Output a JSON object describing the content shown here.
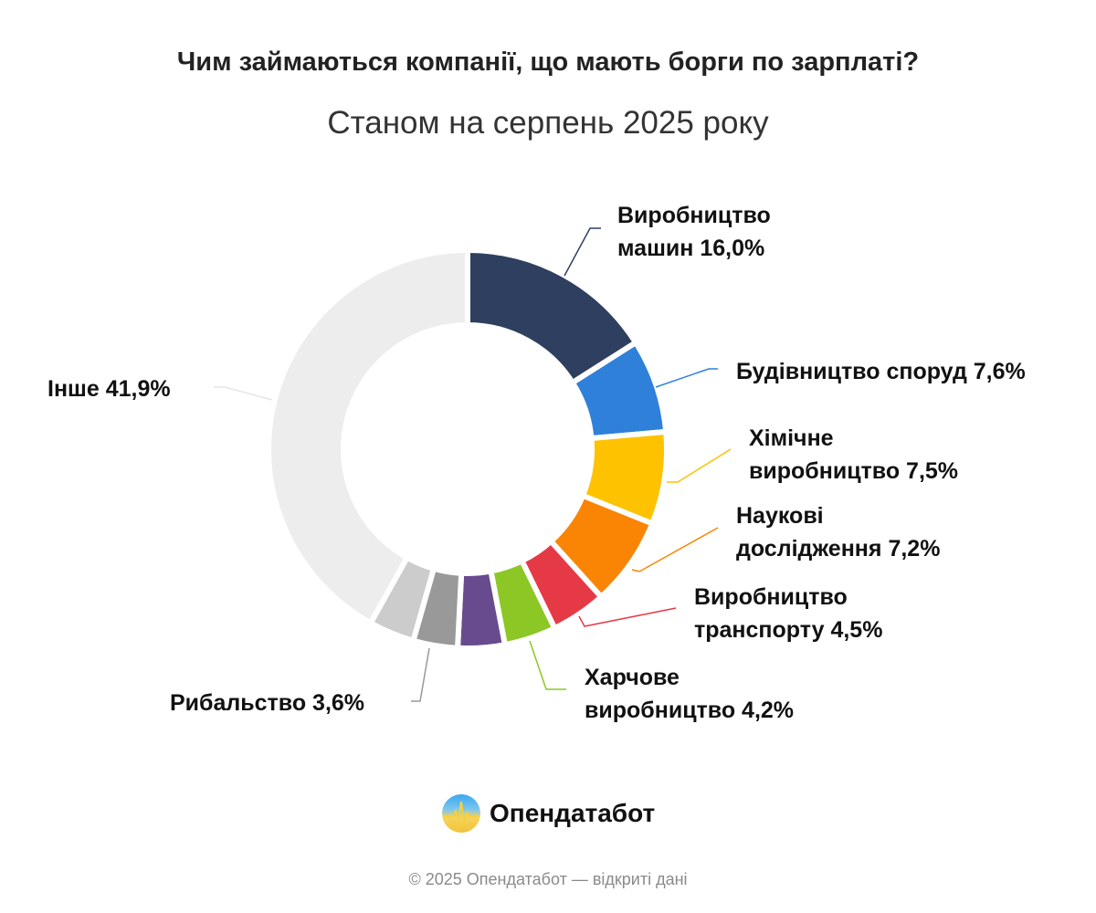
{
  "title": "Чим займаються компанії, що мають борги по зарплаті?",
  "subtitle": "Станом на серпень 2025 року",
  "chart_data": {
    "type": "pie",
    "donut": true,
    "start": "top, clockwise",
    "slices": [
      {
        "label_lines": [
          "Виробництво",
          "машин 16,0%"
        ],
        "value": 16.0,
        "color": "#2e3f5f"
      },
      {
        "label_lines": [
          "Будівництво споруд 7,6%"
        ],
        "value": 7.6,
        "color": "#2f80d9"
      },
      {
        "label_lines": [
          "Хімічне",
          "виробництво 7,5%"
        ],
        "value": 7.5,
        "color": "#fec200"
      },
      {
        "label_lines": [
          "Наукові",
          "дослідження 7,2%"
        ],
        "value": 7.2,
        "color": "#fa8404"
      },
      {
        "label_lines": [
          "Виробництво",
          "транспорту 4,5%"
        ],
        "value": 4.5,
        "color": "#e63946"
      },
      {
        "label_lines": [
          "Харчове",
          "виробництво 4,2%"
        ],
        "value": 4.2,
        "color": "#8cc725"
      },
      {
        "label_lines": [],
        "value": 3.8,
        "color": "#684b8f"
      },
      {
        "label_lines": [
          "Рибальство 3,6%"
        ],
        "value": 3.6,
        "color": "#999999"
      },
      {
        "label_lines": [],
        "value": 3.7,
        "color": "#cccccc"
      },
      {
        "label_lines": [
          "Інше 41,9%"
        ],
        "value": 41.9,
        "color": "#ededed"
      }
    ]
  },
  "brand": {
    "name": "Опендатабот"
  },
  "footer": "© 2025 Опендатабот — відкриті дані"
}
